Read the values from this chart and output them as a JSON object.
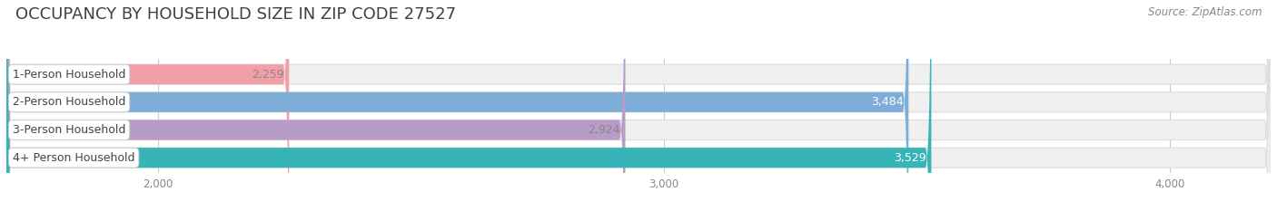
{
  "title": "OCCUPANCY BY HOUSEHOLD SIZE IN ZIP CODE 27527",
  "source": "Source: ZipAtlas.com",
  "categories": [
    "1-Person Household",
    "2-Person Household",
    "3-Person Household",
    "4+ Person Household"
  ],
  "values": [
    2259,
    3484,
    2924,
    3529
  ],
  "bar_colors": [
    "#f2a0a8",
    "#7eaed8",
    "#b89cc8",
    "#36b4b8"
  ],
  "value_labels": [
    "2,259",
    "3,484",
    "2,924",
    "3,529"
  ],
  "value_label_colors": [
    "#888888",
    "#ffffff",
    "#888888",
    "#ffffff"
  ],
  "xlim_left": 1700,
  "xlim_right": 4200,
  "xticks": [
    2000,
    3000,
    4000
  ],
  "xtick_labels": [
    "2,000",
    "3,000",
    "4,000"
  ],
  "bar_height": 0.72,
  "bg_color": "#ffffff",
  "bar_bg_color": "#efefef",
  "bar_bg_border": "#dddddd",
  "title_fontsize": 13,
  "source_fontsize": 8.5,
  "label_fontsize": 9,
  "value_fontsize": 9
}
